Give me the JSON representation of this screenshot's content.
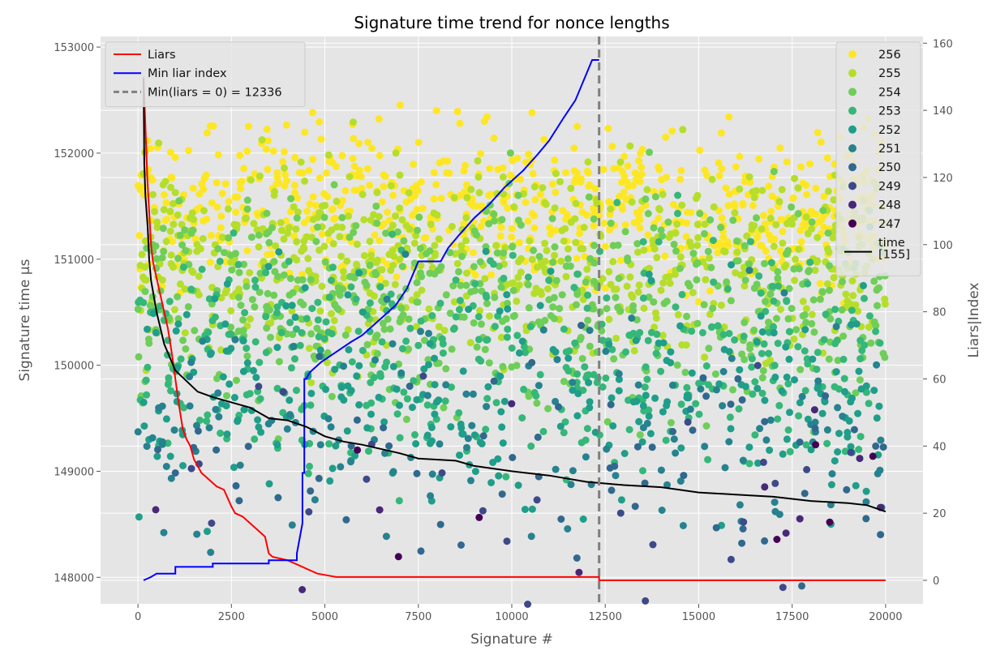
{
  "chart_data": {
    "type": "scatter",
    "title": "Signature time trend for nonce lengths",
    "xlabel": "Signature #",
    "ylabel": "Signature time µs",
    "ylabel_right": "Liars|Index",
    "xlim": [
      -1000,
      21000
    ],
    "ylim": [
      147750,
      153100
    ],
    "ylim_right": [
      -7,
      162
    ],
    "x_ticks": [
      0,
      2500,
      5000,
      7500,
      10000,
      12500,
      15000,
      17500,
      20000
    ],
    "y_ticks": [
      148000,
      149000,
      150000,
      151000,
      152000,
      153000
    ],
    "y_ticks_right": [
      0,
      20,
      40,
      60,
      80,
      100,
      120,
      140,
      160
    ],
    "grid": true,
    "legend_left_position": "top-left",
    "legend_right_position": "top-right",
    "scatter_series": [
      {
        "name": "256",
        "color": "#fde725",
        "y_center": 151500,
        "y_spread": 650,
        "density": 3.2
      },
      {
        "name": "255",
        "color": "#b5de2b",
        "y_center": 151000,
        "y_spread": 800,
        "density": 3.0
      },
      {
        "name": "254",
        "color": "#6ece58",
        "y_center": 150600,
        "y_spread": 900,
        "density": 2.4
      },
      {
        "name": "253",
        "color": "#35b779",
        "y_center": 150100,
        "y_spread": 950,
        "density": 1.8
      },
      {
        "name": "252",
        "color": "#1f9e89",
        "y_center": 149700,
        "y_spread": 1000,
        "density": 1.2
      },
      {
        "name": "251",
        "color": "#26828e",
        "y_center": 149400,
        "y_spread": 1000,
        "density": 0.6
      },
      {
        "name": "250",
        "color": "#31688e",
        "y_center": 149200,
        "y_spread": 1000,
        "density": 0.3
      },
      {
        "name": "249",
        "color": "#3e4989",
        "y_center": 149000,
        "y_spread": 1000,
        "density": 0.12
      },
      {
        "name": "248",
        "color": "#482878",
        "y_center": 148800,
        "y_spread": 800,
        "density": 0.05
      },
      {
        "name": "247",
        "color": "#440154",
        "y_center": 148500,
        "y_spread": 700,
        "density": 0.03
      }
    ],
    "lines": [
      {
        "name": "Liars",
        "color": "#ff0000",
        "axis": "right",
        "points": [
          [
            150,
            150
          ],
          [
            200,
            135
          ],
          [
            250,
            120
          ],
          [
            300,
            110
          ],
          [
            350,
            100
          ],
          [
            400,
            95
          ],
          [
            500,
            90
          ],
          [
            600,
            85
          ],
          [
            700,
            80
          ],
          [
            800,
            75
          ],
          [
            900,
            68
          ],
          [
            1000,
            60
          ],
          [
            1100,
            52
          ],
          [
            1200,
            45
          ],
          [
            1300,
            42
          ],
          [
            1400,
            40
          ],
          [
            1500,
            36
          ],
          [
            1600,
            34
          ],
          [
            1700,
            32
          ],
          [
            1800,
            31
          ],
          [
            1900,
            30
          ],
          [
            2000,
            29
          ],
          [
            2100,
            28
          ],
          [
            2300,
            27
          ],
          [
            2500,
            22
          ],
          [
            2600,
            20
          ],
          [
            2800,
            19
          ],
          [
            3000,
            17
          ],
          [
            3200,
            15
          ],
          [
            3400,
            13
          ],
          [
            3500,
            8
          ],
          [
            3600,
            7
          ],
          [
            4000,
            6
          ],
          [
            4200,
            5
          ],
          [
            4400,
            4
          ],
          [
            4600,
            3
          ],
          [
            4800,
            2
          ],
          [
            5300,
            1
          ],
          [
            12336,
            1
          ],
          [
            12336,
            0
          ],
          [
            20000,
            0
          ]
        ]
      },
      {
        "name": "Min liar index",
        "color": "#0000ff",
        "axis": "right",
        "points": [
          [
            150,
            0
          ],
          [
            350,
            1
          ],
          [
            500,
            2
          ],
          [
            1000,
            2
          ],
          [
            1000,
            4
          ],
          [
            2000,
            4
          ],
          [
            2000,
            5
          ],
          [
            3500,
            5
          ],
          [
            3500,
            6
          ],
          [
            4250,
            6
          ],
          [
            4250,
            8
          ],
          [
            4400,
            17
          ],
          [
            4400,
            32
          ],
          [
            4450,
            32
          ],
          [
            4450,
            60
          ],
          [
            4500,
            60
          ],
          [
            4600,
            62
          ],
          [
            4900,
            65
          ],
          [
            5300,
            68
          ],
          [
            5700,
            71
          ],
          [
            6000,
            73
          ],
          [
            6400,
            77
          ],
          [
            6900,
            82
          ],
          [
            7200,
            87
          ],
          [
            7500,
            95
          ],
          [
            8100,
            95
          ],
          [
            8300,
            99
          ],
          [
            8600,
            103
          ],
          [
            9000,
            108
          ],
          [
            9400,
            112
          ],
          [
            9800,
            117
          ],
          [
            10300,
            122
          ],
          [
            10700,
            127
          ],
          [
            11000,
            131
          ],
          [
            11400,
            138
          ],
          [
            11700,
            143
          ],
          [
            12000,
            151
          ],
          [
            12150,
            155
          ],
          [
            12336,
            155
          ]
        ]
      },
      {
        "name": "time\n[155]",
        "color": "#000000",
        "axis": "left",
        "points": [
          [
            150,
            152700
          ],
          [
            170,
            151900
          ],
          [
            200,
            151600
          ],
          [
            260,
            151300
          ],
          [
            300,
            151000
          ],
          [
            350,
            150800
          ],
          [
            500,
            150500
          ],
          [
            700,
            150200
          ],
          [
            1000,
            149950
          ],
          [
            1300,
            149850
          ],
          [
            1600,
            149750
          ],
          [
            2000,
            149700
          ],
          [
            2500,
            149650
          ],
          [
            3000,
            149600
          ],
          [
            3500,
            149500
          ],
          [
            4000,
            149480
          ],
          [
            4500,
            149420
          ],
          [
            5000,
            149330
          ],
          [
            5500,
            149280
          ],
          [
            6000,
            149250
          ],
          [
            7000,
            149170
          ],
          [
            7500,
            149120
          ],
          [
            8500,
            149100
          ],
          [
            9000,
            149050
          ],
          [
            10000,
            149000
          ],
          [
            11000,
            148960
          ],
          [
            12000,
            148900
          ],
          [
            13000,
            148870
          ],
          [
            14000,
            148850
          ],
          [
            15000,
            148800
          ],
          [
            16000,
            148780
          ],
          [
            17000,
            148760
          ],
          [
            18000,
            148720
          ],
          [
            19000,
            148700
          ],
          [
            19500,
            148680
          ],
          [
            20000,
            148620
          ]
        ]
      },
      {
        "name": "Min(liars = 0) = 12336",
        "color": "#808080",
        "axis": "left",
        "dashed": true,
        "x_value": 12336
      }
    ]
  },
  "legend_left": [
    {
      "label": "Liars",
      "color": "#ff0000",
      "style": "line"
    },
    {
      "label": "Min liar index",
      "color": "#0000ff",
      "style": "line"
    },
    {
      "label": "Min(liars = 0) = 12336",
      "color": "#808080",
      "style": "dashed"
    }
  ],
  "legend_right": [
    {
      "label": "256",
      "color": "#fde725",
      "style": "dot"
    },
    {
      "label": "255",
      "color": "#b5de2b",
      "style": "dot"
    },
    {
      "label": "254",
      "color": "#6ece58",
      "style": "dot"
    },
    {
      "label": "253",
      "color": "#35b779",
      "style": "dot"
    },
    {
      "label": "252",
      "color": "#1f9e89",
      "style": "dot"
    },
    {
      "label": "251",
      "color": "#26828e",
      "style": "dot"
    },
    {
      "label": "250",
      "color": "#31688e",
      "style": "dot"
    },
    {
      "label": "249",
      "color": "#3e4989",
      "style": "dot"
    },
    {
      "label": "248",
      "color": "#482878",
      "style": "dot"
    },
    {
      "label": "247",
      "color": "#440154",
      "style": "dot"
    },
    {
      "label": "time\n[155]",
      "color": "#000000",
      "style": "line"
    }
  ]
}
